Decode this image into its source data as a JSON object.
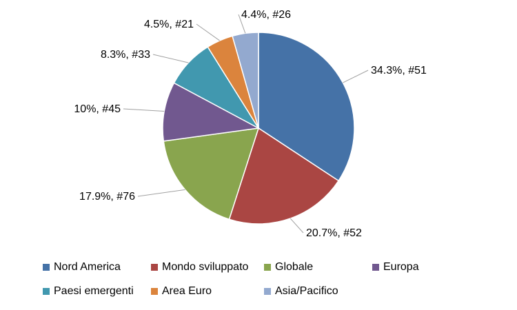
{
  "chart_data": {
    "type": "pie",
    "title": "",
    "slices": [
      {
        "name": "Nord America",
        "value": 34.3,
        "label": "34.3%, #51",
        "color": "#4572A7"
      },
      {
        "name": "Mondo sviluppato",
        "value": 20.7,
        "label": "20.7%, #52",
        "color": "#AA4643"
      },
      {
        "name": "Globale",
        "value": 17.9,
        "label": "17.9%, #76",
        "color": "#89A54E"
      },
      {
        "name": "Europa",
        "value": 10,
        "label": "10%, #45",
        "color": "#71588F"
      },
      {
        "name": "Paesi emergenti",
        "value": 8.3,
        "label": "8.3%, #33",
        "color": "#4198AF"
      },
      {
        "name": "Area Euro",
        "value": 4.5,
        "label": "4.5%, #21",
        "color": "#DB843D"
      },
      {
        "name": "Asia/Pacifico",
        "value": 4.4,
        "label": "4.4%, #26",
        "color": "#93A9CF"
      }
    ],
    "legend_position": "bottom"
  }
}
